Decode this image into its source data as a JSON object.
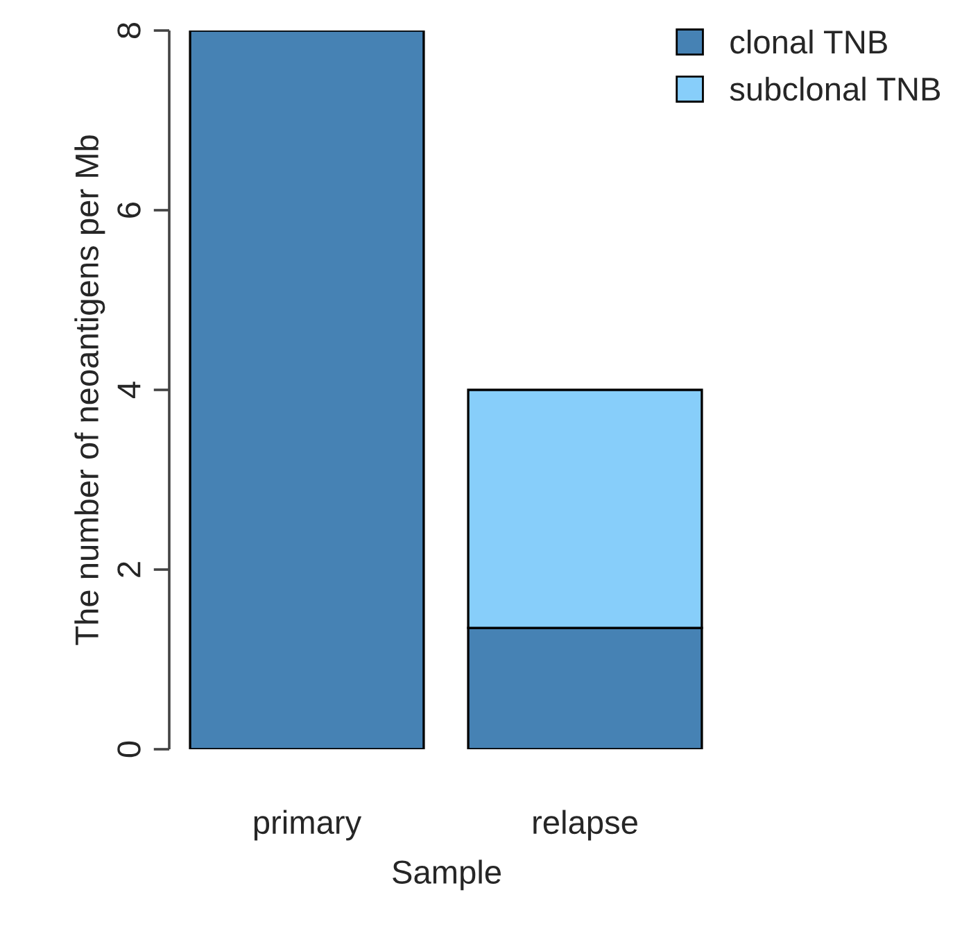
{
  "chart_data": {
    "type": "bar",
    "stacked": true,
    "xlabel": "Sample",
    "ylabel": "The number of neoantigens per Mb",
    "categories": [
      "primary",
      "relapse"
    ],
    "series": [
      {
        "name": "clonal TNB",
        "color": "#4682b4",
        "values": [
          8,
          1.35
        ]
      },
      {
        "name": "subclonal TNB",
        "color": "#87cefa",
        "values": [
          0,
          2.65
        ]
      }
    ],
    "ylim": [
      0,
      8
    ],
    "yticks": [
      0,
      2,
      4,
      6,
      8
    ],
    "grid": false,
    "legend": "top right"
  }
}
